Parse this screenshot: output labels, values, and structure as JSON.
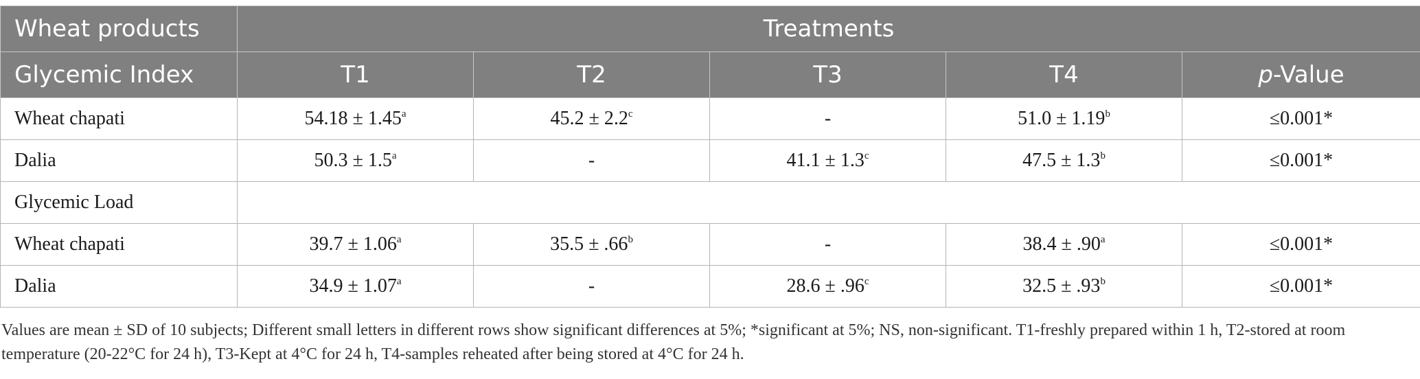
{
  "header": {
    "row1": {
      "corner": "Wheat products",
      "span": "Treatments"
    },
    "row2": {
      "corner": "Glycemic Index",
      "cols": [
        "T1",
        "T2",
        "T3",
        "T4"
      ],
      "pvalue": {
        "italic": "p",
        "rest": "-Value"
      }
    }
  },
  "rows": [
    {
      "label": "Wheat chapati",
      "cells": [
        {
          "v": "54.18 ± 1.45",
          "s": "a"
        },
        {
          "v": "45.2 ± 2.2",
          "s": "c"
        },
        {
          "v": "-",
          "s": ""
        },
        {
          "v": "51.0 ± 1.19",
          "s": "b"
        }
      ],
      "p": "≤0.001*"
    },
    {
      "label": "Dalia",
      "cells": [
        {
          "v": "50.3 ± 1.5",
          "s": "a"
        },
        {
          "v": "-",
          "s": ""
        },
        {
          "v": "41.1 ± 1.3",
          "s": "c"
        },
        {
          "v": "47.5 ± 1.3",
          "s": "b"
        }
      ],
      "p": "≤0.001*"
    },
    {
      "section": "Glycemic Load"
    },
    {
      "label": "Wheat chapati",
      "cells": [
        {
          "v": "39.7 ± 1.06",
          "s": "a"
        },
        {
          "v": "35.5 ± .66",
          "s": "b"
        },
        {
          "v": "-",
          "s": ""
        },
        {
          "v": "38.4 ± .90",
          "s": "a"
        }
      ],
      "p": "≤0.001*"
    },
    {
      "label": "Dalia",
      "cells": [
        {
          "v": "34.9 ± 1.07",
          "s": "a"
        },
        {
          "v": "-",
          "s": ""
        },
        {
          "v": "28.6 ± .96",
          "s": "c"
        },
        {
          "v": "32.5 ± .93",
          "s": "b"
        }
      ],
      "p": "≤0.001*"
    }
  ],
  "footnote": "Values are mean ± SD of 10 subjects; Different small letters in different rows show significant differences at 5%; *significant at 5%; NS, non-significant. T1-freshly prepared within 1 h, T2-stored at room temperature (20-22°C for 24 h), T3-Kept at 4°C for 24 h, T4-samples reheated after being stored at 4°C for 24 h.",
  "colors": {
    "header_bg": "#808080",
    "header_text": "#ffffff",
    "grid": "#b4b4b4"
  }
}
